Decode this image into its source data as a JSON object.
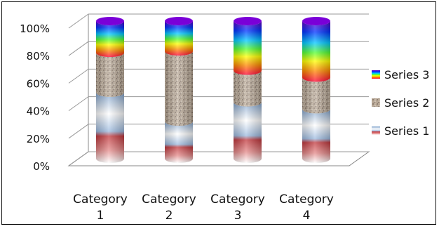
{
  "chart_data": {
    "type": "bar",
    "stacked": "100%",
    "categories": [
      "Category 1",
      "Category 2",
      "Category 3",
      "Category 4"
    ],
    "category_lines": [
      [
        "Category",
        "1"
      ],
      [
        "Category",
        "2"
      ],
      [
        "Category",
        "3"
      ],
      [
        "Category",
        "4"
      ]
    ],
    "series": [
      {
        "name": "Series 1",
        "values": [
          48,
          27,
          41,
          36
        ],
        "color": "#c8434a",
        "style": "red-to-blue gradient"
      },
      {
        "name": "Series 2",
        "values": [
          29,
          51,
          23,
          23
        ],
        "color": "#9a8672",
        "style": "granite texture"
      },
      {
        "name": "Series 3",
        "values": [
          23,
          22,
          36,
          41
        ],
        "color": "#ff2a00",
        "style": "rainbow gradient"
      }
    ],
    "y_ticks": [
      "0%",
      "20%",
      "40%",
      "60%",
      "80%",
      "100%"
    ],
    "ylim": [
      0,
      100
    ],
    "grid": true,
    "legend_position": "right",
    "legend_order": [
      "Series 3",
      "Series 2",
      "Series 1"
    ]
  }
}
